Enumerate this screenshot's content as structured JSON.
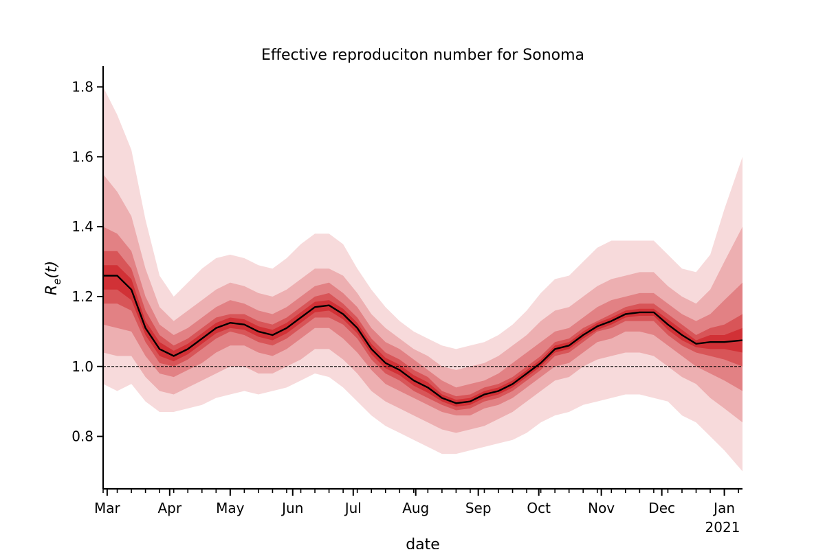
{
  "chart_data": {
    "type": "line",
    "title": "Effective reproduciton number for Sonoma",
    "xlabel": "date",
    "ylabel_base": "R",
    "ylabel_sub": "e",
    "ylabel_arg": "(t)",
    "x_start": "2020-02-28",
    "x_end": "2021-01-10",
    "xlim": [
      "2020-02-28",
      "2021-01-10"
    ],
    "ylim": [
      0.65,
      1.86
    ],
    "x_ticks": [
      {
        "label": "Mar",
        "date": "2020-03-01"
      },
      {
        "label": "Apr",
        "date": "2020-04-01"
      },
      {
        "label": "May",
        "date": "2020-05-01"
      },
      {
        "label": "Jun",
        "date": "2020-06-01"
      },
      {
        "label": "Jul",
        "date": "2020-07-01"
      },
      {
        "label": "Aug",
        "date": "2020-08-01"
      },
      {
        "label": "Sep",
        "date": "2020-09-01"
      },
      {
        "label": "Oct",
        "date": "2020-10-01"
      },
      {
        "label": "Nov",
        "date": "2020-11-01"
      },
      {
        "label": "Dec",
        "date": "2020-12-01"
      },
      {
        "label": "Jan",
        "date": "2021-01-01"
      }
    ],
    "year_label": "2021",
    "y_ticks": [
      {
        "label": "0.8",
        "value": 0.8
      },
      {
        "label": "1.0",
        "value": 1.0
      },
      {
        "label": "1.2",
        "value": 1.2
      },
      {
        "label": "1.4",
        "value": 1.4
      },
      {
        "label": "1.6",
        "value": 1.6
      },
      {
        "label": "1.8",
        "value": 1.8
      }
    ],
    "reference_line": {
      "y": 1.0,
      "style": "dashed"
    },
    "series": [
      {
        "points": [
          [
            "2020-02-28",
            1.26
          ],
          [
            "2020-03-06",
            1.26
          ],
          [
            "2020-03-13",
            1.22
          ],
          [
            "2020-03-20",
            1.11
          ],
          [
            "2020-03-27",
            1.05
          ],
          [
            "2020-04-03",
            1.03
          ],
          [
            "2020-04-10",
            1.05
          ],
          [
            "2020-04-17",
            1.08
          ],
          [
            "2020-04-24",
            1.11
          ],
          [
            "2020-05-01",
            1.125
          ],
          [
            "2020-05-08",
            1.12
          ],
          [
            "2020-05-15",
            1.1
          ],
          [
            "2020-05-22",
            1.09
          ],
          [
            "2020-05-29",
            1.11
          ],
          [
            "2020-06-05",
            1.14
          ],
          [
            "2020-06-12",
            1.17
          ],
          [
            "2020-06-19",
            1.175
          ],
          [
            "2020-06-26",
            1.15
          ],
          [
            "2020-07-03",
            1.11
          ],
          [
            "2020-07-10",
            1.05
          ],
          [
            "2020-07-17",
            1.01
          ],
          [
            "2020-07-24",
            0.99
          ],
          [
            "2020-07-31",
            0.96
          ],
          [
            "2020-08-07",
            0.94
          ],
          [
            "2020-08-14",
            0.91
          ],
          [
            "2020-08-21",
            0.895
          ],
          [
            "2020-08-28",
            0.9
          ],
          [
            "2020-09-04",
            0.92
          ],
          [
            "2020-09-11",
            0.93
          ],
          [
            "2020-09-18",
            0.95
          ],
          [
            "2020-09-25",
            0.98
          ],
          [
            "2020-10-02",
            1.01
          ],
          [
            "2020-10-09",
            1.05
          ],
          [
            "2020-10-16",
            1.06
          ],
          [
            "2020-10-23",
            1.09
          ],
          [
            "2020-10-30",
            1.115
          ],
          [
            "2020-11-06",
            1.13
          ],
          [
            "2020-11-13",
            1.15
          ],
          [
            "2020-11-20",
            1.155
          ],
          [
            "2020-11-27",
            1.155
          ],
          [
            "2020-12-04",
            1.12
          ],
          [
            "2020-12-11",
            1.09
          ],
          [
            "2020-12-18",
            1.065
          ],
          [
            "2020-12-25",
            1.07
          ],
          [
            "2021-01-01",
            1.07
          ],
          [
            "2021-01-10",
            1.075
          ]
        ],
        "bands": [
          {
            "opacity": 0.16,
            "lower": [
              0.95,
              0.93,
              0.95,
              0.9,
              0.87,
              0.87,
              0.88,
              0.89,
              0.91,
              0.92,
              0.93,
              0.92,
              0.93,
              0.94,
              0.96,
              0.98,
              0.97,
              0.94,
              0.9,
              0.86,
              0.83,
              0.81,
              0.79,
              0.77,
              0.75,
              0.75,
              0.76,
              0.77,
              0.78,
              0.79,
              0.81,
              0.84,
              0.86,
              0.87,
              0.89,
              0.9,
              0.91,
              0.92,
              0.92,
              0.91,
              0.9,
              0.86,
              0.84,
              0.8,
              0.76,
              0.7
            ],
            "upper": [
              1.8,
              1.72,
              1.62,
              1.42,
              1.26,
              1.2,
              1.24,
              1.28,
              1.31,
              1.32,
              1.31,
              1.29,
              1.28,
              1.31,
              1.35,
              1.38,
              1.38,
              1.35,
              1.28,
              1.22,
              1.17,
              1.13,
              1.1,
              1.08,
              1.06,
              1.05,
              1.06,
              1.07,
              1.09,
              1.12,
              1.16,
              1.21,
              1.25,
              1.26,
              1.3,
              1.34,
              1.36,
              1.36,
              1.36,
              1.36,
              1.32,
              1.28,
              1.27,
              1.32,
              1.45,
              1.6
            ]
          },
          {
            "opacity": 0.22,
            "lower": [
              1.04,
              1.03,
              1.03,
              0.97,
              0.93,
              0.92,
              0.94,
              0.96,
              0.98,
              1.0,
              1.0,
              0.98,
              0.98,
              1.0,
              1.02,
              1.05,
              1.05,
              1.02,
              0.98,
              0.93,
              0.9,
              0.88,
              0.86,
              0.84,
              0.82,
              0.81,
              0.82,
              0.83,
              0.85,
              0.87,
              0.9,
              0.93,
              0.96,
              0.97,
              1.0,
              1.02,
              1.03,
              1.04,
              1.04,
              1.03,
              1.0,
              0.97,
              0.95,
              0.91,
              0.88,
              0.84
            ],
            "upper": [
              1.55,
              1.5,
              1.43,
              1.28,
              1.17,
              1.13,
              1.16,
              1.19,
              1.22,
              1.24,
              1.23,
              1.21,
              1.2,
              1.22,
              1.25,
              1.28,
              1.28,
              1.26,
              1.21,
              1.15,
              1.11,
              1.08,
              1.05,
              1.03,
              1.0,
              0.99,
              1.0,
              1.01,
              1.03,
              1.06,
              1.09,
              1.13,
              1.16,
              1.17,
              1.2,
              1.23,
              1.25,
              1.26,
              1.27,
              1.27,
              1.23,
              1.2,
              1.18,
              1.22,
              1.3,
              1.4
            ]
          },
          {
            "opacity": 0.3,
            "lower": [
              1.12,
              1.11,
              1.1,
              1.03,
              0.98,
              0.97,
              0.99,
              1.01,
              1.04,
              1.06,
              1.06,
              1.04,
              1.03,
              1.05,
              1.08,
              1.11,
              1.11,
              1.08,
              1.04,
              0.99,
              0.95,
              0.93,
              0.91,
              0.89,
              0.87,
              0.86,
              0.86,
              0.88,
              0.89,
              0.91,
              0.94,
              0.97,
              1.0,
              1.01,
              1.04,
              1.07,
              1.08,
              1.1,
              1.1,
              1.09,
              1.06,
              1.03,
              1.0,
              0.98,
              0.96,
              0.93
            ],
            "upper": [
              1.4,
              1.38,
              1.33,
              1.2,
              1.12,
              1.09,
              1.11,
              1.14,
              1.17,
              1.19,
              1.18,
              1.16,
              1.15,
              1.17,
              1.2,
              1.23,
              1.24,
              1.21,
              1.17,
              1.11,
              1.07,
              1.05,
              1.02,
              0.99,
              0.96,
              0.94,
              0.95,
              0.96,
              0.98,
              1.01,
              1.04,
              1.07,
              1.1,
              1.11,
              1.14,
              1.17,
              1.19,
              1.2,
              1.21,
              1.21,
              1.18,
              1.15,
              1.13,
              1.15,
              1.19,
              1.24
            ]
          },
          {
            "opacity": 0.42,
            "lower": [
              1.18,
              1.18,
              1.16,
              1.07,
              1.01,
              1.0,
              1.02,
              1.05,
              1.08,
              1.1,
              1.09,
              1.07,
              1.06,
              1.08,
              1.11,
              1.14,
              1.14,
              1.12,
              1.08,
              1.02,
              0.98,
              0.96,
              0.93,
              0.91,
              0.89,
              0.875,
              0.88,
              0.9,
              0.91,
              0.93,
              0.96,
              0.99,
              1.03,
              1.04,
              1.07,
              1.1,
              1.11,
              1.13,
              1.13,
              1.13,
              1.09,
              1.06,
              1.04,
              1.03,
              1.02,
              1.0
            ],
            "upper": [
              1.33,
              1.33,
              1.28,
              1.16,
              1.09,
              1.06,
              1.08,
              1.11,
              1.14,
              1.15,
              1.15,
              1.13,
              1.12,
              1.14,
              1.17,
              1.2,
              1.21,
              1.18,
              1.14,
              1.08,
              1.04,
              1.02,
              0.99,
              0.97,
              0.93,
              0.915,
              0.92,
              0.94,
              0.95,
              0.97,
              1.0,
              1.03,
              1.07,
              1.08,
              1.11,
              1.13,
              1.15,
              1.17,
              1.18,
              1.18,
              1.15,
              1.12,
              1.09,
              1.11,
              1.12,
              1.15
            ]
          },
          {
            "opacity": 0.58,
            "lower": [
              1.22,
              1.22,
              1.19,
              1.09,
              1.03,
              1.015,
              1.035,
              1.065,
              1.095,
              1.11,
              1.105,
              1.085,
              1.075,
              1.095,
              1.125,
              1.155,
              1.16,
              1.135,
              1.095,
              1.035,
              0.995,
              0.975,
              0.945,
              0.925,
              0.9,
              0.885,
              0.89,
              0.91,
              0.92,
              0.94,
              0.97,
              1.0,
              1.04,
              1.05,
              1.08,
              1.105,
              1.12,
              1.14,
              1.145,
              1.145,
              1.105,
              1.075,
              1.055,
              1.05,
              1.05,
              1.04
            ],
            "upper": [
              1.29,
              1.29,
              1.25,
              1.13,
              1.07,
              1.045,
              1.065,
              1.095,
              1.125,
              1.14,
              1.135,
              1.115,
              1.105,
              1.125,
              1.155,
              1.185,
              1.19,
              1.165,
              1.125,
              1.065,
              1.025,
              1.005,
              0.975,
              0.955,
              0.92,
              0.905,
              0.91,
              0.93,
              0.94,
              0.96,
              0.99,
              1.02,
              1.06,
              1.07,
              1.1,
              1.125,
              1.14,
              1.16,
              1.165,
              1.165,
              1.135,
              1.105,
              1.075,
              1.09,
              1.09,
              1.11
            ]
          }
        ]
      }
    ],
    "grid": false,
    "legend": "none",
    "colors": {
      "band": "#cb181d",
      "median_line": "#000000",
      "reference_line": "#000000",
      "axis": "#000000"
    }
  }
}
